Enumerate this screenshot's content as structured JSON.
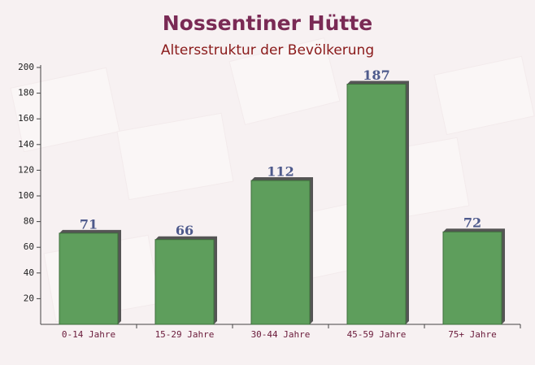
{
  "chart_data": {
    "type": "bar",
    "title": "Nossentiner Hütte",
    "subtitle": "Altersstruktur der Bevölkerung",
    "categories": [
      "0-14 Jahre",
      "15-29 Jahre",
      "30-44 Jahre",
      "45-59 Jahre",
      "75+ Jahre"
    ],
    "values": [
      71,
      66,
      112,
      187,
      72
    ],
    "color": "#5e9e5c",
    "ylim": [
      0,
      200
    ],
    "yticks": [
      20,
      40,
      60,
      80,
      100,
      120,
      140,
      160,
      180,
      200
    ],
    "grid": false
  }
}
